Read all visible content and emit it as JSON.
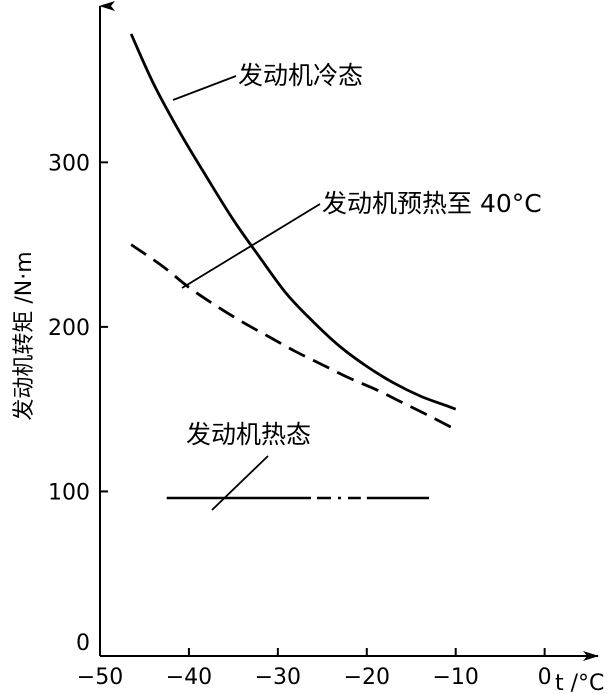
{
  "chart_data": {
    "type": "line",
    "xlabel": "t /°C",
    "ylabel": "发动机转矩 /N·m",
    "xlim": [
      -50,
      6
    ],
    "ylim": [
      0,
      395
    ],
    "x_ticks": [
      -50,
      -40,
      -30,
      -20,
      -10,
      0
    ],
    "x_tick_labels": [
      "−50",
      "−40",
      "−30",
      "−20",
      "−10",
      "0"
    ],
    "y_ticks": [
      0,
      100,
      200,
      300
    ],
    "y_tick_labels": [
      "0",
      "100",
      "200",
      "300"
    ],
    "grid": false,
    "legend": "none",
    "series": [
      {
        "name": "发动机冷态",
        "style": "solid",
        "color": "#000000",
        "x": [
          -46.5,
          -44,
          -41,
          -38,
          -35,
          -32,
          -29,
          -26,
          -23,
          -20,
          -17,
          -14,
          -11,
          -10
        ],
        "y": [
          378,
          348,
          318,
          291,
          265,
          242,
          220,
          203,
          188,
          176,
          166,
          158,
          152,
          150
        ]
      },
      {
        "name": "发动机预热至 40°C",
        "style": "dashed",
        "color": "#000000",
        "x": [
          -46.5,
          -43,
          -40,
          -37,
          -34,
          -31,
          -28,
          -25,
          -22,
          -19,
          -16,
          -13,
          -10.5
        ],
        "y": [
          250,
          237,
          224,
          213,
          203,
          194,
          185,
          177,
          169,
          162,
          154,
          146,
          139
        ]
      },
      {
        "name": "发动机热态",
        "style": "solid-dashdot-solid",
        "color": "#000000",
        "x": [
          -42.5,
          -13
        ],
        "y": [
          96,
          96
        ]
      }
    ],
    "annotations": [
      {
        "text": "发动机冷态",
        "series": 0
      },
      {
        "text": "发动机预热至 40°C",
        "series": 1
      },
      {
        "text": "发动机热态",
        "series": 2
      }
    ]
  }
}
